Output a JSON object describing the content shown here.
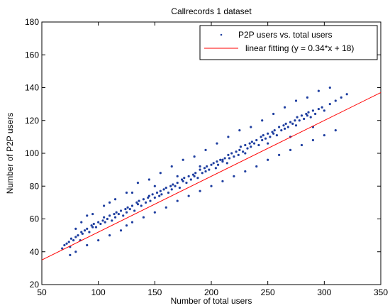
{
  "chart_data": {
    "type": "scatter",
    "title": "Callrecords 1 dataset",
    "xlabel": "Number of total users",
    "ylabel": "Number of P2P users",
    "xlim": [
      50,
      350
    ],
    "ylim": [
      20,
      180
    ],
    "xticks": [
      50,
      100,
      150,
      200,
      250,
      300,
      350
    ],
    "yticks": [
      20,
      40,
      60,
      80,
      100,
      120,
      140,
      160,
      180
    ],
    "grid": false,
    "legend_position": "top-right",
    "series": [
      {
        "name": "P2P users vs. total users",
        "kind": "points",
        "color": "#1f3fa0",
        "x": [
          68,
          70,
          72,
          74,
          75,
          76,
          78,
          80,
          82,
          84,
          85,
          86,
          88,
          90,
          92,
          94,
          95,
          96,
          98,
          100,
          102,
          104,
          105,
          106,
          108,
          110,
          112,
          114,
          115,
          116,
          118,
          120,
          122,
          124,
          125,
          126,
          128,
          130,
          132,
          134,
          135,
          136,
          138,
          140,
          142,
          144,
          145,
          146,
          148,
          150,
          152,
          154,
          155,
          156,
          158,
          160,
          162,
          164,
          165,
          166,
          168,
          170,
          172,
          174,
          175,
          176,
          178,
          180,
          182,
          184,
          185,
          186,
          188,
          190,
          192,
          194,
          195,
          196,
          198,
          200,
          202,
          204,
          205,
          206,
          208,
          210,
          212,
          214,
          215,
          216,
          218,
          220,
          222,
          224,
          225,
          226,
          228,
          230,
          232,
          234,
          235,
          236,
          238,
          240,
          242,
          244,
          245,
          246,
          248,
          250,
          252,
          254,
          255,
          256,
          258,
          260,
          262,
          264,
          265,
          266,
          268,
          270,
          272,
          274,
          275,
          276,
          278,
          280,
          282,
          284,
          285,
          286,
          288,
          290,
          292,
          295,
          298,
          300,
          305,
          310,
          315,
          320,
          75,
          80,
          90,
          100,
          110,
          120,
          125,
          130,
          140,
          150,
          160,
          170,
          180,
          190,
          200,
          210,
          220,
          230,
          240,
          250,
          260,
          270,
          280,
          290,
          300,
          310,
          90,
          110,
          130,
          150,
          170,
          190,
          210,
          230,
          250,
          270,
          290,
          80,
          85,
          95,
          105,
          115,
          125,
          135,
          145,
          155,
          165,
          175,
          185,
          195,
          205,
          215,
          225,
          235,
          245,
          255,
          265,
          275,
          285,
          295,
          305
        ],
        "y": [
          42,
          44,
          45,
          46,
          43,
          48,
          47,
          49,
          50,
          47,
          52,
          51,
          53,
          54,
          52,
          56,
          55,
          57,
          55,
          58,
          57,
          59,
          61,
          58,
          60,
          62,
          59,
          63,
          61,
          64,
          63,
          65,
          62,
          66,
          64,
          67,
          66,
          68,
          65,
          70,
          69,
          71,
          68,
          72,
          70,
          73,
          74,
          71,
          75,
          73,
          76,
          74,
          77,
          75,
          78,
          79,
          76,
          80,
          78,
          81,
          80,
          82,
          79,
          84,
          83,
          85,
          82,
          86,
          84,
          87,
          86,
          88,
          85,
          90,
          88,
          91,
          89,
          92,
          90,
          93,
          94,
          91,
          95,
          93,
          96,
          95,
          97,
          94,
          99,
          97,
          100,
          98,
          101,
          99,
          102,
          104,
          101,
          105,
          103,
          106,
          104,
          107,
          106,
          108,
          105,
          110,
          108,
          111,
          109,
          112,
          110,
          113,
          112,
          114,
          111,
          116,
          114,
          117,
          115,
          118,
          116,
          119,
          118,
          120,
          117,
          122,
          120,
          123,
          121,
          124,
          123,
          125,
          122,
          126,
          124,
          127,
          128,
          126,
          130,
          132,
          134,
          136,
          38,
          40,
          44,
          47,
          50,
          53,
          56,
          58,
          61,
          64,
          67,
          71,
          74,
          77,
          80,
          83,
          86,
          89,
          92,
          96,
          99,
          102,
          105,
          108,
          111,
          114,
          62,
          70,
          76,
          80,
          86,
          92,
          96,
          100,
          106,
          110,
          116,
          54,
          58,
          63,
          68,
          72,
          76,
          82,
          84,
          88,
          92,
          96,
          98,
          102,
          106,
          110,
          114,
          116,
          120,
          124,
          128,
          132,
          134,
          138,
          140
        ]
      },
      {
        "name": "linear fitting (y = 0.34*x + 18)",
        "kind": "line",
        "color": "#ff0000",
        "slope": 0.34,
        "intercept": 18,
        "x": [
          50,
          350
        ],
        "y": [
          35,
          137
        ]
      }
    ]
  }
}
